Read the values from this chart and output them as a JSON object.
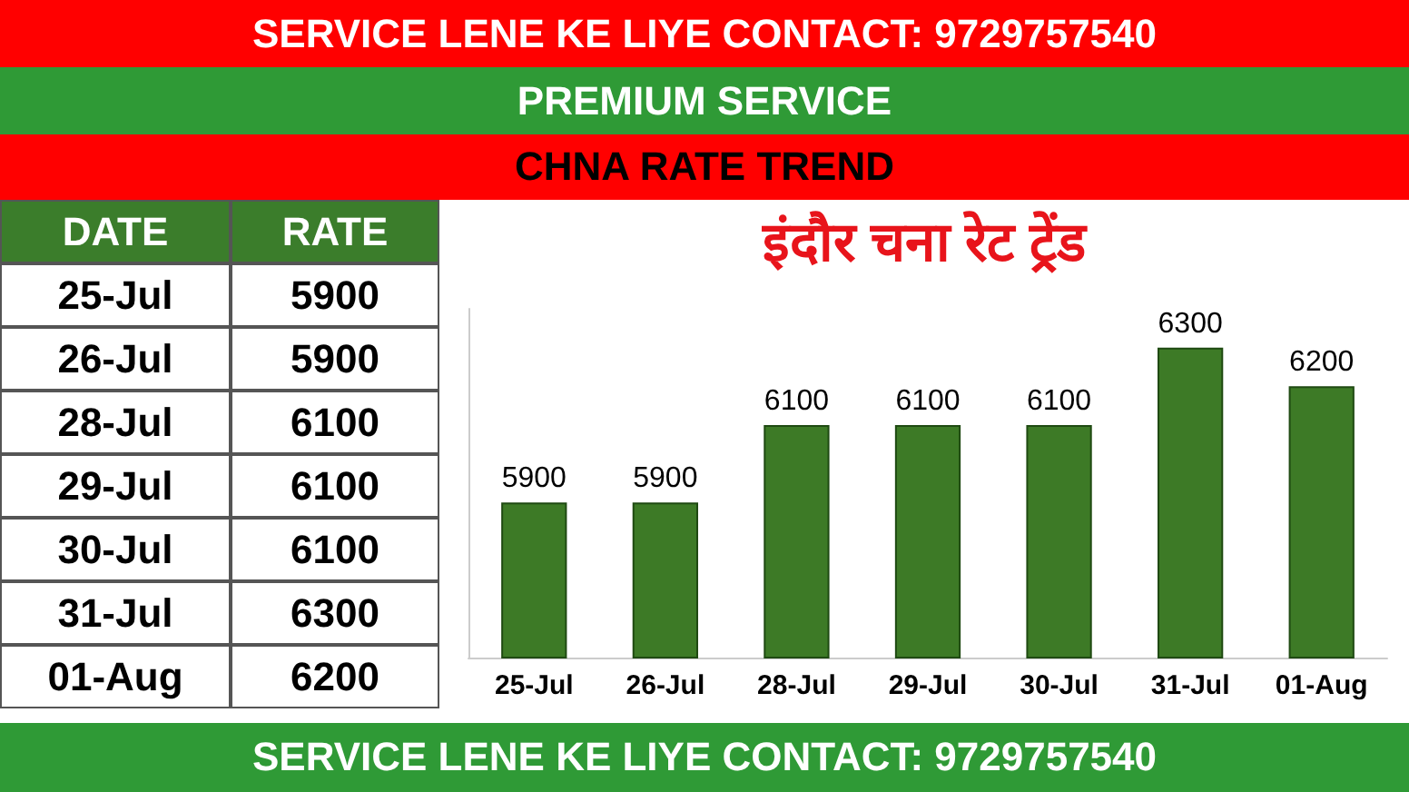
{
  "chart_data": {
    "type": "bar",
    "title": "इंदौर चना रेट ट्रेंड",
    "categories": [
      "25-Jul",
      "26-Jul",
      "28-Jul",
      "29-Jul",
      "30-Jul",
      "31-Jul",
      "01-Aug"
    ],
    "values": [
      5900,
      5900,
      6100,
      6100,
      6100,
      6300,
      6200
    ],
    "color": "#3d7a26",
    "data_labels": true,
    "ylim": [
      5500,
      6400
    ],
    "tick_labels": "x",
    "annotations": [
      "SERVICE LENE KE LIYE CONTACT: 9729757540",
      "PREMIUM SERVICE",
      "CHNA RATE TREND",
      "DATE",
      "RATE",
      "SERVICE LENE KE LIYE CONTACT: 9729757540",
      "5900",
      "5900",
      "6100",
      "6100",
      "6100",
      "6300",
      "6200"
    ]
  }
}
